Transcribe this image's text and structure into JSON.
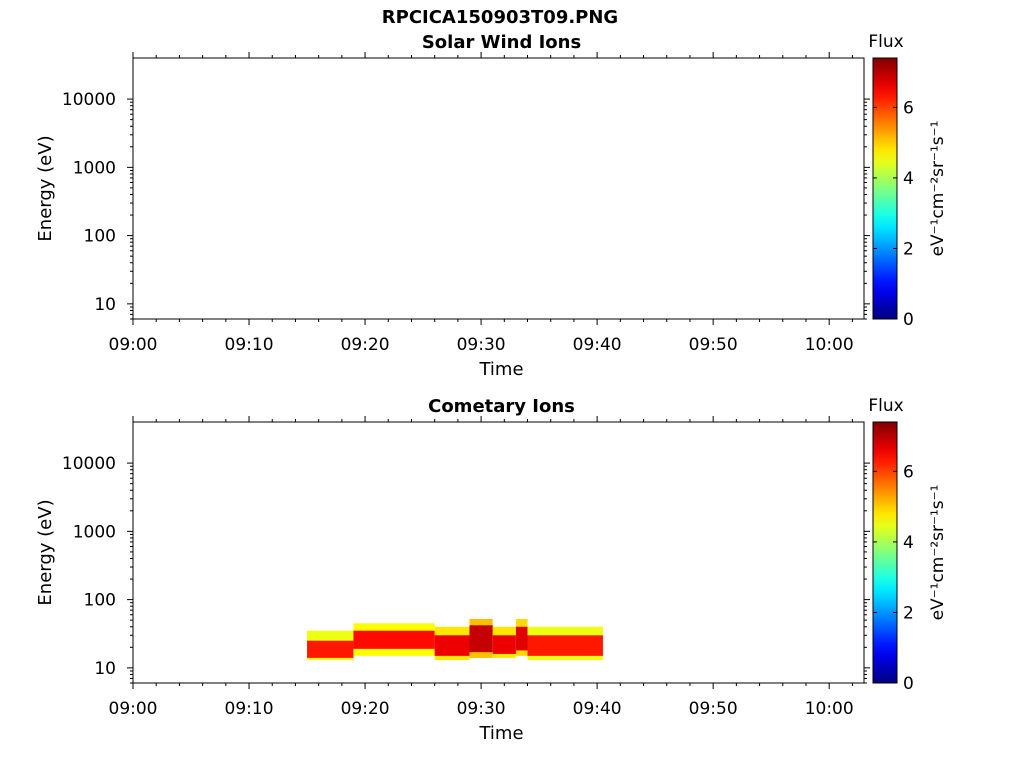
{
  "figure_title": "RPCICA150903T09.PNG",
  "chart_data": [
    {
      "type": "heatmap",
      "title": "Solar Wind Ions",
      "xlabel": "Time",
      "ylabel": "Energy (eV)",
      "x_ticks": [
        "09:00",
        "09:10",
        "09:20",
        "09:30",
        "09:40",
        "09:50",
        "10:00"
      ],
      "xlim": [
        "09:00",
        "10:03"
      ],
      "y_scale": "log",
      "y_ticks": [
        10,
        100,
        1000,
        10000
      ],
      "y_tick_labels": [
        "10",
        "100",
        "1000",
        "10000"
      ],
      "ylim": [
        6,
        40000
      ],
      "colorbar": {
        "title": "Flux",
        "label": "eV⁻¹cm⁻²sr⁻¹s⁻¹",
        "ticks": [
          0,
          2,
          4,
          6
        ],
        "range": [
          0,
          7.4
        ],
        "colormap": "jet"
      },
      "blocks": []
    },
    {
      "type": "heatmap",
      "title": "Cometary Ions",
      "xlabel": "Time",
      "ylabel": "Energy (eV)",
      "x_ticks": [
        "09:00",
        "09:10",
        "09:20",
        "09:30",
        "09:40",
        "09:50",
        "10:00"
      ],
      "xlim": [
        "09:00",
        "10:03"
      ],
      "y_scale": "log",
      "y_ticks": [
        10,
        100,
        1000,
        10000
      ],
      "y_tick_labels": [
        "10",
        "100",
        "1000",
        "10000"
      ],
      "ylim": [
        6,
        40000
      ],
      "colorbar": {
        "title": "Flux",
        "label": "eV⁻¹cm⁻²sr⁻¹s⁻¹",
        "ticks": [
          0,
          2,
          4,
          6
        ],
        "range": [
          0,
          7.4
        ],
        "colormap": "jet"
      },
      "blocks": [
        {
          "t0": "09:15",
          "t1": "09:19",
          "e_low": 13,
          "e_high": 35,
          "core_low": 14,
          "core_high": 25,
          "flux": 6.3
        },
        {
          "t0": "09:19",
          "t1": "09:26",
          "e_low": 15,
          "e_high": 45,
          "core_low": 19,
          "core_high": 35,
          "flux": 6.4
        },
        {
          "t0": "09:26",
          "t1": "09:29",
          "e_low": 13,
          "e_high": 40,
          "core_low": 15,
          "core_high": 30,
          "flux": 6.6
        },
        {
          "t0": "09:29",
          "t1": "09:31",
          "e_low": 14,
          "e_high": 52,
          "core_low": 17,
          "core_high": 42,
          "flux": 6.9
        },
        {
          "t0": "09:31",
          "t1": "09:33",
          "e_low": 14,
          "e_high": 40,
          "core_low": 16,
          "core_high": 30,
          "flux": 6.6
        },
        {
          "t0": "09:33",
          "t1": "09:34",
          "e_low": 15,
          "e_high": 52,
          "core_low": 18,
          "core_high": 40,
          "flux": 6.7
        },
        {
          "t0": "09:34",
          "t1": "09:40.5",
          "e_low": 13,
          "e_high": 40,
          "core_low": 15,
          "core_high": 30,
          "flux": 6.3
        }
      ]
    }
  ]
}
